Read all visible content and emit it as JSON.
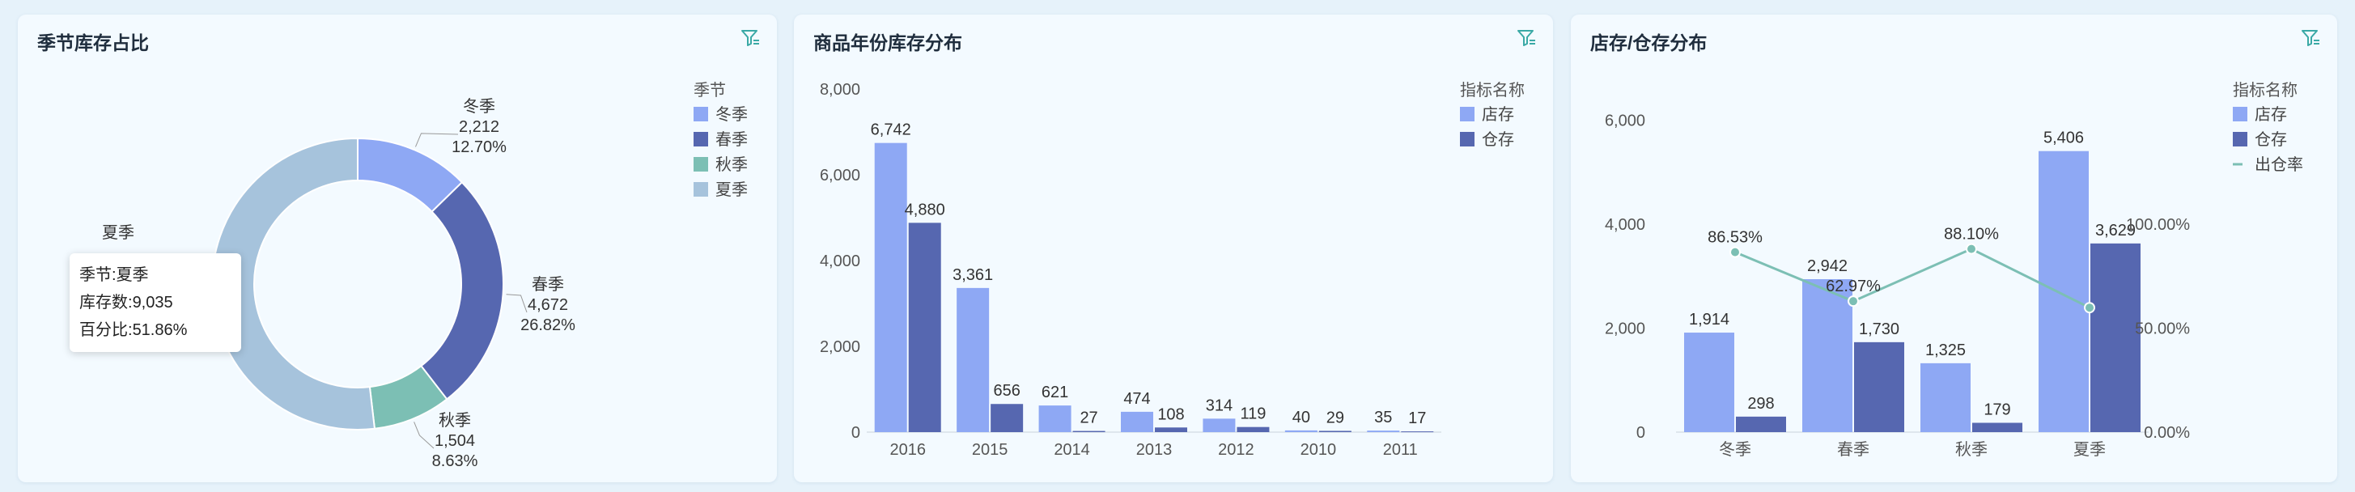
{
  "panels": {
    "season": {
      "title": "季节库存占比",
      "legend_title": "季节",
      "tooltip": {
        "header": "夏季",
        "rows": [
          {
            "label": "季节:",
            "value": "夏季"
          },
          {
            "label": "库存数:",
            "value": "9,035"
          },
          {
            "label": "百分比:",
            "value": "51.86%"
          }
        ]
      }
    },
    "year": {
      "title": "商品年份库存分布",
      "legend_title": "指标名称"
    },
    "store": {
      "title": "店存/仓存分布",
      "legend_title": "指标名称"
    }
  },
  "chart_data": [
    {
      "type": "pie",
      "donut": true,
      "title": "季节库存占比",
      "legend": [
        "冬季",
        "春季",
        "秋季",
        "夏季"
      ],
      "categories": [
        "冬季",
        "春季",
        "秋季",
        "夏季"
      ],
      "values": [
        2212,
        4672,
        1504,
        9035
      ],
      "value_labels": [
        "2,212",
        "4,672",
        "1,504",
        ""
      ],
      "percent_labels": [
        "12.70%",
        "26.82%",
        "8.63%",
        ""
      ],
      "percentages": [
        12.7,
        26.82,
        8.63,
        51.86
      ],
      "colors": [
        "#8ea8f4",
        "#5667b0",
        "#7cbfb4",
        "#a6c3dc"
      ]
    },
    {
      "type": "bar",
      "title": "商品年份库存分布",
      "categories": [
        "2016",
        "2015",
        "2014",
        "2013",
        "2012",
        "2010",
        "2011"
      ],
      "series": [
        {
          "name": "店存",
          "values": [
            6742,
            3361,
            621,
            474,
            314,
            40,
            35
          ],
          "labels": [
            "6,742",
            "3,361",
            "621",
            "474",
            "314",
            "40",
            "35"
          ],
          "color": "#8ea8f4"
        },
        {
          "name": "仓存",
          "values": [
            4880,
            656,
            27,
            108,
            119,
            29,
            17
          ],
          "labels": [
            "4,880",
            "656",
            "27",
            "108",
            "119",
            "29",
            "17"
          ],
          "color": "#5667b0"
        }
      ],
      "ylim": [
        0,
        8000
      ],
      "yticks": [
        0,
        2000,
        4000,
        6000,
        8000
      ],
      "ytick_labels": [
        "0",
        "2,000",
        "4,000",
        "6,000",
        "8,000"
      ],
      "legend_title": "指标名称",
      "legend_position": "right"
    },
    {
      "type": "bar",
      "title": "店存/仓存分布",
      "categories": [
        "冬季",
        "春季",
        "秋季",
        "夏季"
      ],
      "series": [
        {
          "name": "店存",
          "values": [
            1914,
            2942,
            1325,
            5406
          ],
          "labels": [
            "1,914",
            "2,942",
            "1,325",
            "5,406"
          ],
          "color": "#8ea8f4"
        },
        {
          "name": "仓存",
          "values": [
            298,
            1730,
            179,
            3629
          ],
          "labels": [
            "298",
            "1,730",
            "179",
            "3,629"
          ],
          "color": "#5667b0"
        },
        {
          "name": "出仓率",
          "type": "line",
          "axis": "right",
          "values": [
            86.53,
            62.97,
            88.1,
            59.85
          ],
          "labels": [
            "86.53%",
            "62.97%",
            "88.10%",
            ""
          ],
          "color": "#7cbfb4"
        }
      ],
      "ylim": [
        0,
        6600
      ],
      "yticks": [
        0,
        2000,
        4000,
        6000
      ],
      "ytick_labels": [
        "0",
        "2,000",
        "4,000",
        "6,000"
      ],
      "y2lim": [
        0,
        165
      ],
      "y2ticks": [
        0,
        50,
        100
      ],
      "y2tick_labels": [
        "0.00%",
        "50.00%",
        "100.00%"
      ],
      "legend_title": "指标名称",
      "legend_position": "right"
    }
  ]
}
